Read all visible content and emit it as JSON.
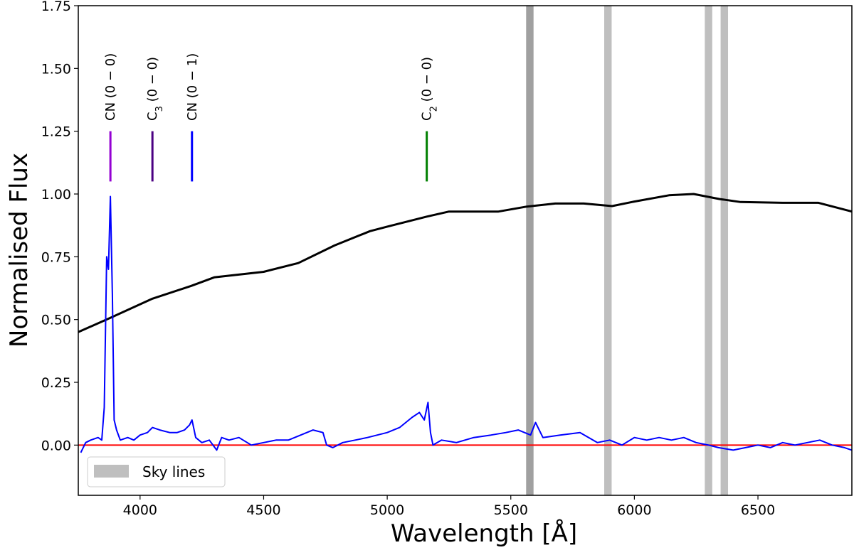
{
  "chart_data": {
    "type": "line",
    "title": "",
    "xlabel": "Wavelength [Å]",
    "ylabel": "Normalised Flux",
    "xlim": [
      3750,
      6880
    ],
    "ylim": [
      -0.2,
      1.75
    ],
    "xticks": [
      4000,
      4500,
      5000,
      5500,
      6000,
      6500
    ],
    "xtick_labels": [
      "4000",
      "4500",
      "5000",
      "5500",
      "6000",
      "6500"
    ],
    "yticks": [
      0.0,
      0.25,
      0.5,
      0.75,
      1.0,
      1.25,
      1.5,
      1.75
    ],
    "ytick_labels": [
      "0.00",
      "0.25",
      "0.50",
      "0.75",
      "1.00",
      "1.25",
      "1.50",
      "1.75"
    ],
    "grid": false,
    "legend": {
      "placement": "lower-left",
      "entries": [
        {
          "label": "Sky lines",
          "color": "#bfbfbf"
        }
      ]
    },
    "sky_lines": [
      {
        "center": 5577,
        "width": 30,
        "color": "#a0a0a0"
      },
      {
        "center": 5893,
        "width": 30,
        "color": "#bfbfbf"
      },
      {
        "center": 6300,
        "width": 30,
        "color": "#bfbfbf"
      },
      {
        "center": 6364,
        "width": 30,
        "color": "#bfbfbf"
      }
    ],
    "zero_line": {
      "y": 0,
      "color": "#ff0000"
    },
    "annotations": [
      {
        "x": 3880,
        "y0": 1.05,
        "y1": 1.25,
        "color": "#9400d3",
        "main": "CN",
        "sub": "",
        "rest": " (0 − 0)"
      },
      {
        "x": 4050,
        "y0": 1.05,
        "y1": 1.25,
        "color": "#4b0082",
        "main": "C",
        "sub": "3",
        "rest": " (0 − 0)"
      },
      {
        "x": 4210,
        "y0": 1.05,
        "y1": 1.25,
        "color": "#0000ff",
        "main": "CN",
        "sub": "",
        "rest": " (0 − 1)"
      },
      {
        "x": 5160,
        "y0": 1.05,
        "y1": 1.25,
        "color": "#008000",
        "main": "C",
        "sub": "2",
        "rest": " (0 − 0)"
      }
    ],
    "series": [
      {
        "color": "#000000",
        "x": [
          3750,
          3880,
          4050,
          4207,
          4300,
          4500,
          4640,
          4787,
          4930,
          5000,
          5160,
          5250,
          5450,
          5565,
          5680,
          5795,
          5910,
          6000,
          6140,
          6240,
          6345,
          6430,
          6600,
          6745,
          6880
        ],
        "y": [
          0.45,
          0.507,
          0.583,
          0.634,
          0.668,
          0.69,
          0.725,
          0.795,
          0.852,
          0.87,
          0.91,
          0.93,
          0.93,
          0.95,
          0.962,
          0.962,
          0.952,
          0.97,
          0.995,
          1.0,
          0.98,
          0.968,
          0.965,
          0.965,
          0.93
        ]
      },
      {
        "color": "#0000ff",
        "x": [
          3760,
          3780,
          3800,
          3830,
          3845,
          3855,
          3865,
          3872,
          3880,
          3888,
          3895,
          3905,
          3920,
          3950,
          3975,
          4000,
          4030,
          4050,
          4080,
          4120,
          4150,
          4180,
          4200,
          4210,
          4225,
          4250,
          4280,
          4310,
          4330,
          4360,
          4400,
          4450,
          4500,
          4550,
          4600,
          4650,
          4700,
          4740,
          4755,
          4780,
          4820,
          4870,
          4920,
          4960,
          5000,
          5050,
          5100,
          5130,
          5150,
          5165,
          5175,
          5185,
          5220,
          5280,
          5350,
          5420,
          5480,
          5530,
          5580,
          5600,
          5630,
          5700,
          5780,
          5850,
          5900,
          5950,
          6000,
          6050,
          6100,
          6150,
          6200,
          6250,
          6300,
          6340,
          6400,
          6450,
          6500,
          6550,
          6600,
          6650,
          6700,
          6750,
          6800,
          6850,
          6880
        ],
        "y": [
          -0.03,
          0.01,
          0.02,
          0.03,
          0.02,
          0.15,
          0.75,
          0.7,
          0.99,
          0.6,
          0.1,
          0.06,
          0.02,
          0.03,
          0.02,
          0.04,
          0.05,
          0.07,
          0.06,
          0.05,
          0.05,
          0.06,
          0.08,
          0.1,
          0.03,
          0.01,
          0.02,
          -0.02,
          0.03,
          0.02,
          0.03,
          0.0,
          0.01,
          0.02,
          0.02,
          0.04,
          0.06,
          0.05,
          0.0,
          -0.01,
          0.01,
          0.02,
          0.03,
          0.04,
          0.05,
          0.07,
          0.11,
          0.13,
          0.1,
          0.17,
          0.05,
          0.0,
          0.02,
          0.01,
          0.03,
          0.04,
          0.05,
          0.06,
          0.04,
          0.09,
          0.03,
          0.04,
          0.05,
          0.01,
          0.02,
          0.0,
          0.03,
          0.02,
          0.03,
          0.02,
          0.03,
          0.01,
          0.0,
          -0.01,
          -0.02,
          -0.01,
          0.0,
          -0.01,
          0.01,
          0.0,
          0.01,
          0.02,
          0.0,
          -0.01,
          -0.02
        ]
      }
    ]
  }
}
